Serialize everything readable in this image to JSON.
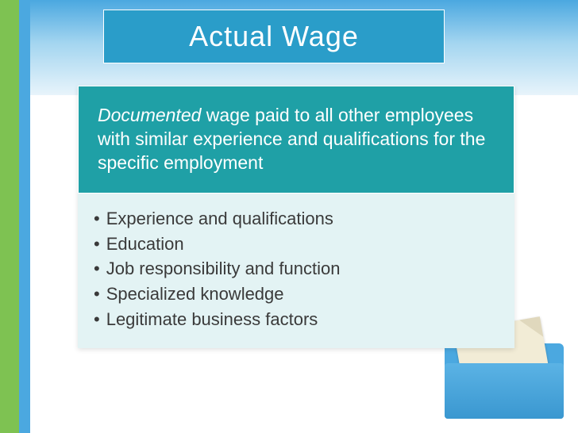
{
  "colors": {
    "title_bg": "#2a9dc9",
    "title_fg": "#ffffff",
    "card_top_bg": "#1fa0a6",
    "card_top_fg": "#ffffff",
    "card_bottom_bg": "#e3f3f4",
    "card_bottom_fg": "#3a3a3a",
    "accent_green": "#7ec252",
    "accent_blue": "#4ba8e0",
    "page_bg": "#ffffff"
  },
  "typography": {
    "title_font": "Century Gothic",
    "title_size_pt": 28,
    "body_font": "Verdana",
    "body_size_pt": 17,
    "bullet_size_pt": 16
  },
  "title": "Actual Wage",
  "definition": {
    "emphasis_word": "Documented",
    "rest": " wage paid to all other employees with similar experience and qualifications for the specific employment"
  },
  "bullets": [
    "Experience and qualifications",
    "Education",
    "Job responsibility and function",
    "Specialized knowledge",
    "Legitimate business factors"
  ]
}
